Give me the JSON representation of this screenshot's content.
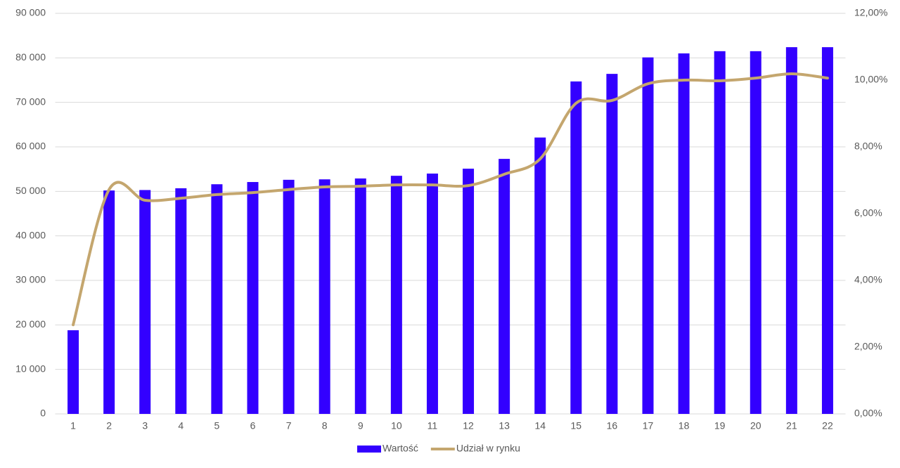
{
  "chart_data": {
    "type": "bar-line",
    "categories": [
      "1",
      "2",
      "3",
      "4",
      "5",
      "6",
      "7",
      "8",
      "9",
      "10",
      "11",
      "12",
      "13",
      "14",
      "15",
      "16",
      "17",
      "18",
      "19",
      "20",
      "21",
      "22"
    ],
    "series": [
      {
        "name": "Wartość",
        "type": "bar",
        "color": "#3300ff",
        "values": [
          18800,
          50200,
          50300,
          50700,
          51600,
          52100,
          52600,
          52700,
          52900,
          53500,
          54000,
          55100,
          57300,
          62100,
          74700,
          76400,
          80100,
          81000,
          81500,
          81500,
          82400,
          82400
        ]
      },
      {
        "name": "Udział w rynku",
        "type": "line",
        "axis": "y2",
        "color": "#c4a66e",
        "values": [
          2.67,
          6.72,
          6.4,
          6.46,
          6.57,
          6.63,
          6.72,
          6.8,
          6.82,
          6.86,
          6.86,
          6.84,
          7.18,
          7.64,
          9.31,
          9.39,
          9.89,
          10.0,
          9.98,
          10.06,
          10.19,
          10.06
        ]
      }
    ],
    "ylim": [
      0,
      90000
    ],
    "yticks": [
      0,
      {
        "value": 10000,
        "label": "10 000"
      },
      {
        "value": 20000,
        "label": "20 000"
      },
      {
        "value": 30000,
        "label": "30 000"
      },
      {
        "value": 40000,
        "label": "40 000"
      },
      {
        "value": 50000,
        "label": "50 000"
      },
      {
        "value": 60000,
        "label": "60 000"
      },
      {
        "value": 70000,
        "label": "70 000"
      },
      {
        "value": 80000,
        "label": "80 000"
      },
      {
        "value": 90000,
        "label": "90 000"
      }
    ],
    "y2lim": [
      0,
      12
    ],
    "y2ticks": [
      {
        "value": 0,
        "label": "0,00%"
      },
      {
        "value": 2,
        "label": "2,00%"
      },
      {
        "value": 4,
        "label": "4,00%"
      },
      {
        "value": 6,
        "label": "6,00%"
      },
      {
        "value": 8,
        "label": "8,00%"
      },
      {
        "value": 10,
        "label": "10,00%"
      },
      {
        "value": 12,
        "label": "12,00%"
      }
    ],
    "grid": true,
    "legend": "bottom"
  }
}
